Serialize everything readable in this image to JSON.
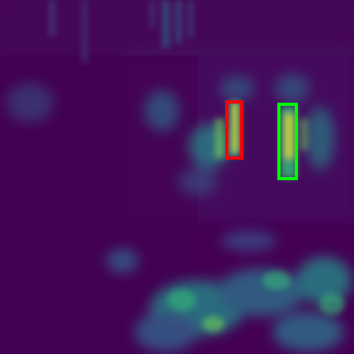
{
  "image": {
    "kind": "attention-heatmap",
    "colormap": "viridis",
    "background_color": "#440154"
  },
  "boxes": [
    {
      "id": "red",
      "color": "#ff0000"
    },
    {
      "id": "green",
      "color": "#00ff00"
    }
  ]
}
